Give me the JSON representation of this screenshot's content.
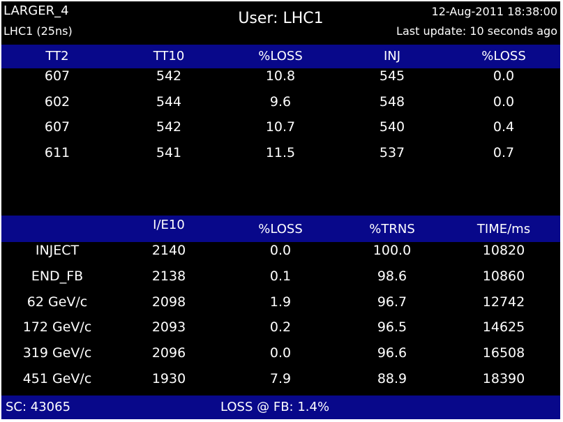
{
  "header": {
    "top_left": "LARGER_4",
    "sub_left": "LHC1 (25ns)",
    "title": "User: LHC1",
    "datetime": "12-Aug-2011 18:38:00",
    "last_update": "Last update: 10 seconds ago"
  },
  "table1": {
    "headers": [
      "TT2",
      "TT10",
      "%LOSS",
      "INJ",
      "%LOSS"
    ],
    "rows": [
      [
        "607",
        "542",
        "10.8",
        "545",
        "0.0"
      ],
      [
        "602",
        "544",
        "9.6",
        "548",
        "0.0"
      ],
      [
        "607",
        "542",
        "10.7",
        "540",
        "0.4"
      ],
      [
        "611",
        "541",
        "11.5",
        "537",
        "0.7"
      ]
    ]
  },
  "table2": {
    "headers": [
      "",
      "I/E10",
      "%LOSS",
      "%TRNS",
      "TIME/ms"
    ],
    "rows": [
      [
        "INJECT",
        "2140",
        "0.0",
        "100.0",
        "10820"
      ],
      [
        "END_FB",
        "2138",
        "0.1",
        "98.6",
        "10860"
      ],
      [
        "62 GeV/c",
        "2098",
        "1.9",
        "96.7",
        "12742"
      ],
      [
        "172 GeV/c",
        "2093",
        "0.2",
        "96.5",
        "14625"
      ],
      [
        "319 GeV/c",
        "2096",
        "0.0",
        "96.6",
        "16508"
      ],
      [
        "451 GeV/c",
        "1930",
        "7.9",
        "88.9",
        "18390"
      ]
    ]
  },
  "footer": {
    "sc": "SC: 43065",
    "loss": "LOSS @ FB: 1.4%"
  },
  "colors": {
    "background": "#000000",
    "band": "#08088a",
    "text": "#ffffff"
  }
}
